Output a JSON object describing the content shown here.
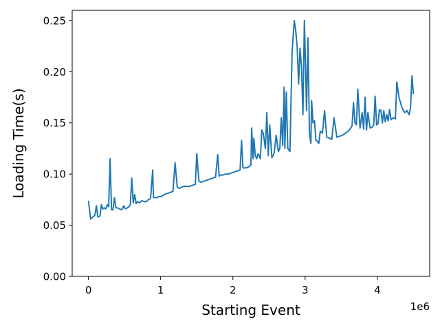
{
  "chart_data": {
    "type": "line",
    "xlabel": "Starting Event",
    "ylabel": "Loading Time(s)",
    "x_offset_label": "1e6",
    "x_ticks": [
      0,
      1,
      2,
      3,
      4
    ],
    "x_tick_labels": [
      "0",
      "1",
      "2",
      "3",
      "4"
    ],
    "y_ticks": [
      0.0,
      0.05,
      0.1,
      0.15,
      0.2,
      0.25
    ],
    "y_tick_labels": [
      "0.00",
      "0.05",
      "0.10",
      "0.15",
      "0.20",
      "0.25"
    ],
    "xlim": [
      -0.225,
      4.725
    ],
    "ylim": [
      0,
      0.26
    ],
    "grid": false,
    "line_color": "#1f77b4",
    "x_scale": 1000000,
    "series": [
      {
        "x": [
          0,
          30000,
          60000,
          90000,
          110000,
          130000,
          160000,
          180000,
          200000,
          220000,
          240000,
          260000,
          280000,
          300000,
          320000,
          340000,
          360000,
          380000,
          400000,
          430000,
          460000,
          490000,
          510000,
          540000,
          560000,
          580000,
          600000,
          620000,
          640000,
          660000,
          680000,
          710000,
          740000,
          770000,
          800000,
          830000,
          860000,
          890000,
          900000,
          920000,
          950000,
          980000,
          1010000,
          1050000,
          1090000,
          1130000,
          1170000,
          1200000,
          1230000,
          1260000,
          1290000,
          1320000,
          1360000,
          1400000,
          1440000,
          1480000,
          1500000,
          1530000,
          1560000,
          1600000,
          1640000,
          1680000,
          1720000,
          1760000,
          1790000,
          1810000,
          1830000,
          1860000,
          1900000,
          1940000,
          1980000,
          2020000,
          2060000,
          2100000,
          2120000,
          2140000,
          2180000,
          2220000,
          2250000,
          2260000,
          2280000,
          2290000,
          2310000,
          2330000,
          2350000,
          2380000,
          2400000,
          2420000,
          2450000,
          2470000,
          2490000,
          2510000,
          2540000,
          2570000,
          2600000,
          2630000,
          2650000,
          2670000,
          2690000,
          2710000,
          2720000,
          2740000,
          2760000,
          2790000,
          2820000,
          2850000,
          2870000,
          2890000,
          2910000,
          2930000,
          2950000,
          2970000,
          2990000,
          3010000,
          3020000,
          3040000,
          3060000,
          3080000,
          3090000,
          3110000,
          3130000,
          3150000,
          3170000,
          3190000,
          3210000,
          3240000,
          3270000,
          3300000,
          3340000,
          3370000,
          3400000,
          3440000,
          3480000,
          3520000,
          3560000,
          3600000,
          3630000,
          3650000,
          3670000,
          3690000,
          3710000,
          3730000,
          3760000,
          3790000,
          3810000,
          3830000,
          3850000,
          3870000,
          3900000,
          3930000,
          3950000,
          3970000,
          3990000,
          4010000,
          4030000,
          4050000,
          4070000,
          4090000,
          4110000,
          4130000,
          4150000,
          4170000,
          4190000,
          4220000,
          4250000,
          4270000,
          4300000,
          4340000,
          4380000,
          4410000,
          4440000,
          4460000,
          4480000,
          4500000
        ],
        "y": [
          0.074,
          0.056,
          0.058,
          0.06,
          0.069,
          0.058,
          0.059,
          0.07,
          0.066,
          0.067,
          0.066,
          0.07,
          0.068,
          0.115,
          0.065,
          0.065,
          0.077,
          0.067,
          0.067,
          0.066,
          0.065,
          0.069,
          0.066,
          0.067,
          0.068,
          0.07,
          0.096,
          0.072,
          0.08,
          0.071,
          0.073,
          0.072,
          0.074,
          0.073,
          0.073,
          0.075,
          0.076,
          0.104,
          0.077,
          0.077,
          0.077,
          0.078,
          0.078,
          0.08,
          0.081,
          0.082,
          0.083,
          0.111,
          0.087,
          0.086,
          0.087,
          0.088,
          0.088,
          0.088,
          0.089,
          0.09,
          0.12,
          0.093,
          0.092,
          0.093,
          0.094,
          0.095,
          0.096,
          0.097,
          0.119,
          0.098,
          0.099,
          0.099,
          0.1,
          0.1,
          0.101,
          0.102,
          0.103,
          0.104,
          0.133,
          0.106,
          0.106,
          0.107,
          0.109,
          0.145,
          0.115,
          0.135,
          0.118,
          0.115,
          0.12,
          0.115,
          0.143,
          0.14,
          0.125,
          0.16,
          0.118,
          0.148,
          0.116,
          0.12,
          0.138,
          0.122,
          0.125,
          0.155,
          0.128,
          0.185,
          0.125,
          0.18,
          0.125,
          0.122,
          0.22,
          0.25,
          0.24,
          0.225,
          0.188,
          0.223,
          0.205,
          0.158,
          0.25,
          0.195,
          0.162,
          0.233,
          0.14,
          0.13,
          0.172,
          0.15,
          0.152,
          0.133,
          0.132,
          0.13,
          0.142,
          0.14,
          0.162,
          0.136,
          0.135,
          0.134,
          0.155,
          0.136,
          0.137,
          0.138,
          0.14,
          0.142,
          0.145,
          0.147,
          0.17,
          0.15,
          0.148,
          0.183,
          0.145,
          0.16,
          0.144,
          0.175,
          0.143,
          0.16,
          0.145,
          0.146,
          0.148,
          0.176,
          0.148,
          0.149,
          0.163,
          0.162,
          0.15,
          0.162,
          0.151,
          0.158,
          0.152,
          0.163,
          0.153,
          0.155,
          0.154,
          0.19,
          0.175,
          0.165,
          0.16,
          0.162,
          0.158,
          0.165,
          0.196,
          0.178
        ]
      }
    ]
  }
}
